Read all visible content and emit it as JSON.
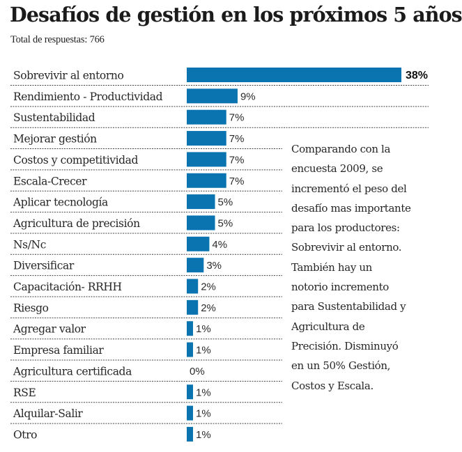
{
  "chart_data": {
    "type": "bar",
    "orientation": "horizontal",
    "title": "Desafíos de gestión en los próximos 5 años",
    "subtitle": "Total de respuestas: 766",
    "xlabel": "",
    "ylabel": "",
    "unit": "%",
    "xlim": [
      0,
      38
    ],
    "grid": false,
    "legend": "none",
    "categories": [
      "Sobrevivir al entorno",
      "Rendimiento - Productividad",
      "Sustentabilidad",
      "Mejorar gestión",
      "Costos y competitividad",
      "Escala-Crecer",
      "Aplicar tecnología",
      "Agricultura de precisión",
      "Ns/Nc",
      "Diversificar",
      "Capacitación- RRHH",
      "Riesgo",
      "Agregar valor",
      "Empresa familiar",
      "Agricultura certificada",
      "RSE",
      "Alquilar-Salir",
      "Otro"
    ],
    "values": [
      38,
      9,
      7,
      7,
      7,
      7,
      5,
      5,
      4,
      3,
      2,
      2,
      1,
      1,
      0,
      1,
      1,
      1
    ],
    "value_labels": [
      "38%",
      "9%",
      "7%",
      "7%",
      "7%",
      "7%",
      "5%",
      "5%",
      "4%",
      "3%",
      "2%",
      "2%",
      "1%",
      "1%",
      "0%",
      "1%",
      "1%",
      "1%"
    ],
    "bar_color": "#0a74b1",
    "annotation": "Comparando con la encuesta 2009, se incrementó el peso del desafío mas importante para los productores: Sobrevivir al entorno. También hay un notorio incremento para Sustentabilidad y Agricultura de Precisión. Disminuyó en un 50% Gestión, Costos y Escala."
  },
  "annotation_lines": [
    "Comparando con la",
    "encuesta 2009, se",
    "incrementó el peso del",
    "desafío mas importante",
    "para los productores:",
    "Sobrevivir al entorno.",
    "También hay un",
    "notorio incremento",
    "para Sustentabilidad y",
    "Agricultura de",
    "Precisión. Disminuyó",
    "en un 50% Gestión,",
    "Costos y Escala."
  ]
}
